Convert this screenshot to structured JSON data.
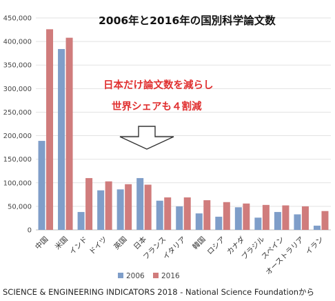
{
  "chart_data": {
    "type": "bar",
    "title": "2006年と2016年の国別科学論文数",
    "categories": [
      "中国",
      "米国",
      "インド",
      "ドイツ",
      "英国",
      "日本",
      "フランス",
      "イタリア",
      "韓国",
      "ロシア",
      "カナダ",
      "ブラジル",
      "スペイン",
      "オーストラリア",
      "イラン"
    ],
    "series": [
      {
        "name": "2006",
        "color": "#7f9ec9",
        "values": [
          189000,
          384000,
          38000,
          84000,
          86000,
          110000,
          62000,
          50000,
          35000,
          28000,
          48000,
          26000,
          38000,
          33000,
          9000
        ]
      },
      {
        "name": "2016",
        "color": "#d07c7c",
        "values": [
          426000,
          408000,
          110000,
          103000,
          97000,
          96000,
          69000,
          69000,
          63000,
          59000,
          56000,
          53000,
          52000,
          50000,
          40000
        ]
      }
    ],
    "ylim": [
      0,
      450000
    ],
    "yticks": [
      0,
      50000,
      100000,
      150000,
      200000,
      250000,
      300000,
      350000,
      400000,
      450000
    ],
    "ytick_labels": [
      "0",
      "50,000",
      "100,000",
      "150,000",
      "200,000",
      "250,000",
      "300,000",
      "350,000",
      "400,000",
      "450,000"
    ],
    "grid": true,
    "legend": "bottom",
    "annotations": [
      "日本だけ論文数を減らし",
      "世界シェアも４割減"
    ],
    "annotation_color": "#e03030",
    "arrow": "down"
  },
  "source_text": "SCIENCE & ENGINEERING INDICATORS 2018 - National Science Foundationから"
}
